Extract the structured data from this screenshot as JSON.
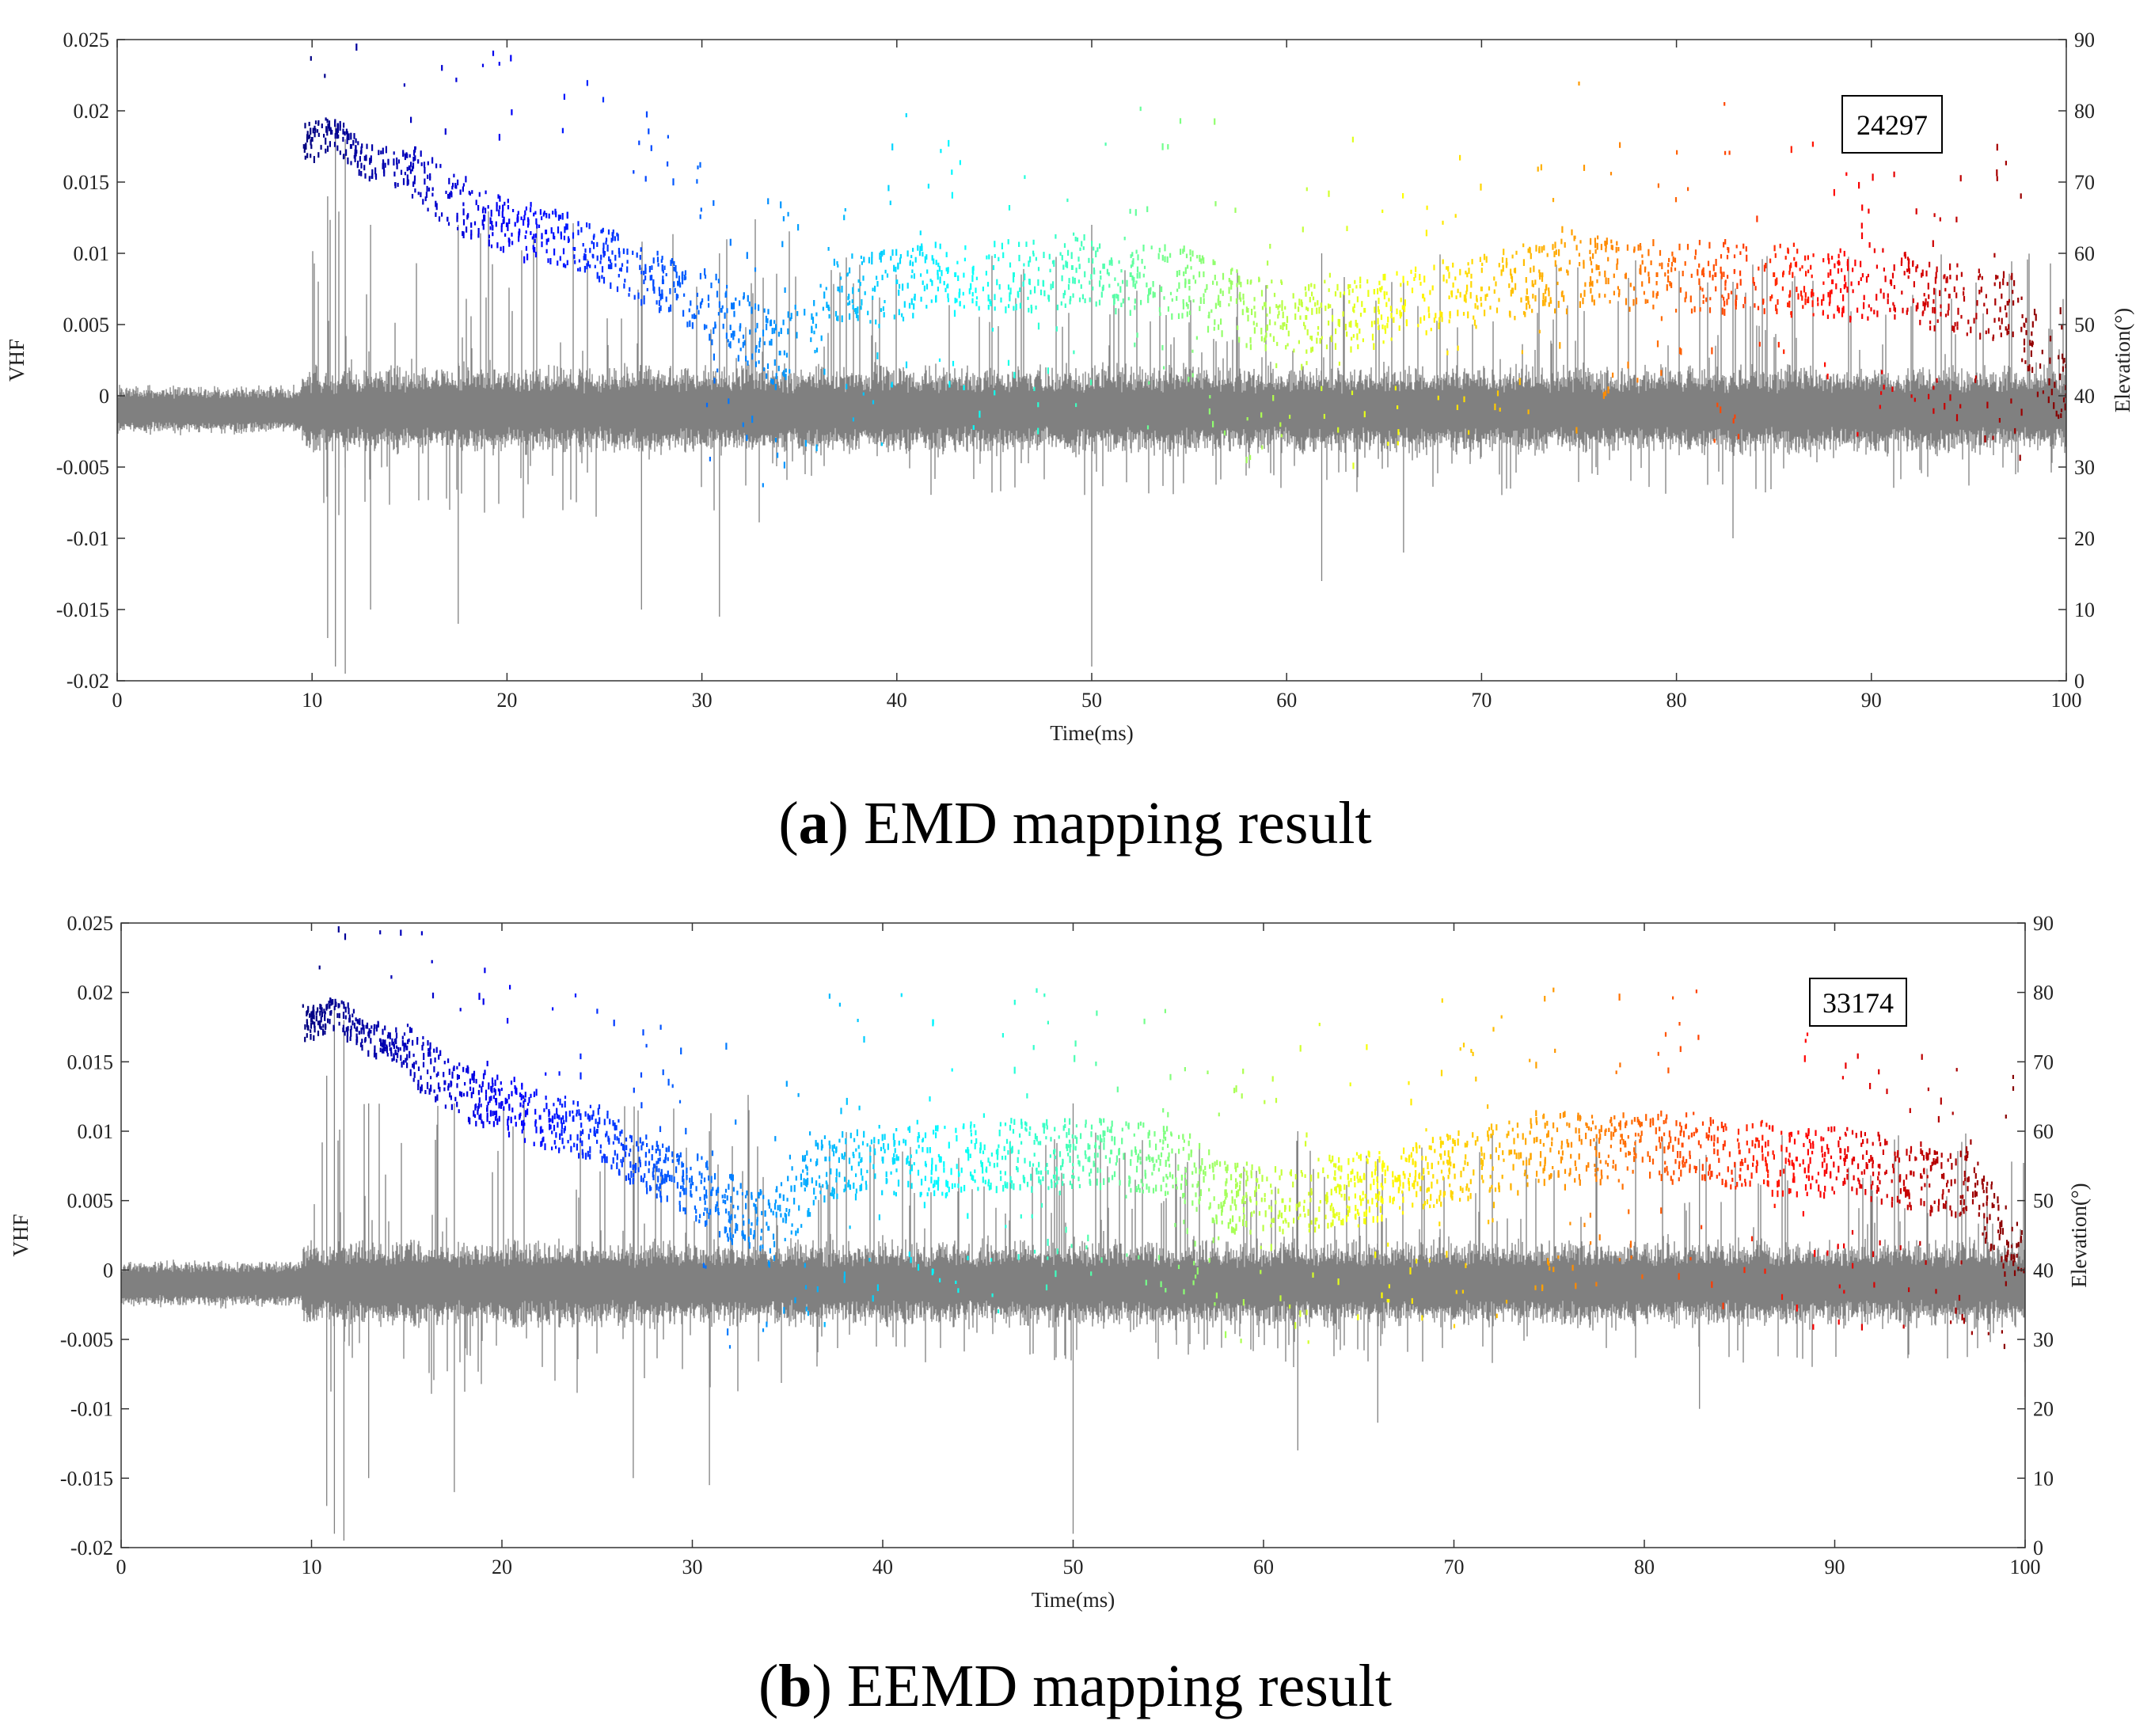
{
  "figure": {
    "panels": [
      {
        "id": "a",
        "caption_letter": "a",
        "caption_text": "EMD mapping result",
        "count": "24297"
      },
      {
        "id": "b",
        "caption_letter": "b",
        "caption_text": "EEMD mapping result",
        "count": "33174"
      }
    ]
  },
  "colors": {
    "signal": "#808080",
    "colormap": [
      "#00008f",
      "#0000ff",
      "#0080ff",
      "#00ffff",
      "#80ff80",
      "#ffff00",
      "#ff8000",
      "#ff0000",
      "#800000"
    ]
  },
  "chart_data": [
    {
      "type": "scatter",
      "title": "EMD mapping result",
      "count_label": "24297",
      "xlabel": "Time(ms)",
      "ylabel": "VHF",
      "y2label": "Elevation(°)",
      "xlim": [
        0,
        100
      ],
      "ylim": [
        -0.02,
        0.025
      ],
      "y2lim": [
        0,
        90
      ],
      "x_ticks": [
        "0",
        "10",
        "20",
        "30",
        "40",
        "50",
        "60",
        "70",
        "80",
        "90",
        "100"
      ],
      "y_ticks": [
        "-0.02",
        "-0.015",
        "-0.01",
        "-0.005",
        "0",
        "0.005",
        "0.01",
        "0.015",
        "0.02",
        "0.025"
      ],
      "y2_ticks": [
        "0",
        "10",
        "20",
        "30",
        "40",
        "50",
        "60",
        "70",
        "80",
        "90"
      ],
      "signal_baseline": -0.001,
      "signal_onset_ms": 9.5,
      "scatter_series": {
        "name": "Elevation (colored by time)",
        "x": [
          10,
          11,
          12,
          13,
          15,
          17,
          20,
          22,
          25,
          28,
          31,
          34,
          37,
          40,
          43,
          46,
          49,
          52,
          55,
          58,
          61,
          64,
          67,
          70,
          73,
          76,
          79,
          82,
          85,
          88,
          91,
          94,
          97,
          100
        ],
        "y": [
          76,
          77,
          75,
          73,
          72,
          68,
          64,
          63,
          60,
          56,
          52,
          46,
          55,
          56,
          57,
          57,
          58,
          57,
          56,
          52,
          51,
          52,
          54,
          55,
          57,
          58,
          57,
          57,
          57,
          56,
          56,
          54,
          53,
          40
        ]
      }
    },
    {
      "type": "scatter",
      "title": "EEMD mapping result",
      "count_label": "33174",
      "xlabel": "Time(ms)",
      "ylabel": "VHF",
      "y2label": "Elevation(°)",
      "xlim": [
        0,
        100
      ],
      "ylim": [
        -0.02,
        0.025
      ],
      "y2lim": [
        0,
        90
      ],
      "x_ticks": [
        "0",
        "10",
        "20",
        "30",
        "40",
        "50",
        "60",
        "70",
        "80",
        "90",
        "100"
      ],
      "y_ticks": [
        "-0.02",
        "-0.015",
        "-0.01",
        "-0.005",
        "0",
        "0.005",
        "0.01",
        "0.015",
        "0.02",
        "0.025"
      ],
      "y2_ticks": [
        "0",
        "10",
        "20",
        "30",
        "40",
        "50",
        "60",
        "70",
        "80",
        "90"
      ],
      "signal_baseline": -0.001,
      "signal_onset_ms": 9.5,
      "scatter_series": {
        "name": "Elevation (colored by time)",
        "x": [
          10,
          11,
          12,
          13,
          15,
          17,
          20,
          22,
          25,
          28,
          31,
          34,
          37,
          40,
          43,
          46,
          49,
          52,
          55,
          58,
          61,
          64,
          67,
          70,
          73,
          76,
          79,
          82,
          85,
          88,
          91,
          94,
          97,
          100
        ],
        "y": [
          76,
          77,
          76,
          74,
          72,
          67,
          64,
          62,
          60,
          55,
          51,
          46,
          56,
          56,
          56,
          57,
          57,
          57,
          56,
          51,
          50,
          52,
          53,
          55,
          57,
          58,
          58,
          58,
          57,
          56,
          56,
          54,
          53,
          40
        ]
      }
    }
  ]
}
